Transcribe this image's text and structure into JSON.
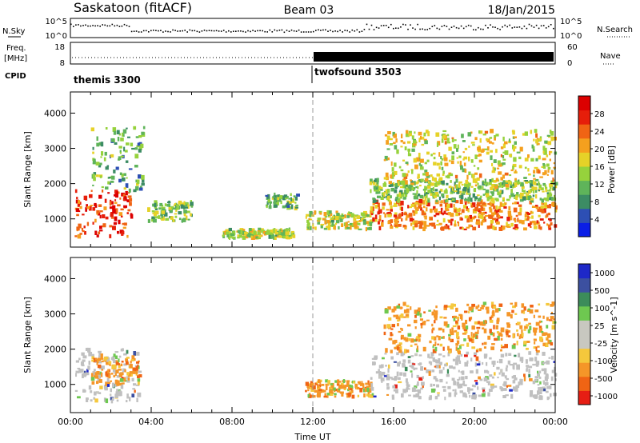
{
  "header": {
    "station": "Saskatoon (fitACF)",
    "beam": "Beam 03",
    "date": "18/Jan/2015"
  },
  "ancillary": {
    "nsky_label": "N.Sky",
    "nsky_ticks": [
      "10^5",
      "10^0"
    ],
    "nsearch_label": "N.Search",
    "nsearch_ticks": [
      "10^5",
      "10^0"
    ],
    "freq_label_line1": "Freq.",
    "freq_label_line2": "[MHz]",
    "freq_ticks": [
      "18",
      "8"
    ],
    "nave_label": "Nave",
    "nave_ticks": [
      "60",
      "0"
    ],
    "cpid_label": "CPID",
    "modes": [
      {
        "name": "themis 3300",
        "start_hour": 0
      },
      {
        "name": "twofsound 3503",
        "start_hour": 12
      }
    ]
  },
  "colors": {
    "power_scale": [
      "#0a1ee6",
      "#2d4fb4",
      "#3c8c64",
      "#5fb45a",
      "#96d23c",
      "#e6d228",
      "#f5a01e",
      "#f06414",
      "#e61e0a",
      "#dc0000"
    ],
    "velocity_scale": [
      "#1e28c8",
      "#3c50a0",
      "#3c8c5a",
      "#6ec850",
      "#c8c8c0",
      "#c8c8c0",
      "#f5c83c",
      "#f59628",
      "#f06414",
      "#e61e14"
    ],
    "ground_scatter": "#c0c0c0"
  },
  "chart_data": [
    {
      "type": "heatmap",
      "panel": "power",
      "xlabel": "Time UT",
      "ylabel": "Slant Range [km]",
      "xlim_hours": [
        0,
        24
      ],
      "ylim": [
        200,
        4600
      ],
      "yticks": [
        1000,
        2000,
        3000,
        4000
      ],
      "xticks": [
        "00:00",
        "04:00",
        "08:00",
        "12:00",
        "16:00",
        "20:00",
        "00:00"
      ],
      "colorbar_label": "Power [dB]",
      "colorbar_ticks": [
        "4",
        "8",
        "12",
        "16",
        "20",
        "24",
        "28"
      ],
      "colorbar_range": [
        0,
        30
      ],
      "features": [
        {
          "t0": 0.2,
          "t1": 3.0,
          "r0": 500,
          "r1": 1800,
          "level": 26
        },
        {
          "t0": 1.0,
          "t1": 3.6,
          "r0": 1800,
          "r1": 3600,
          "level": 10
        },
        {
          "t0": 3.8,
          "t1": 6.0,
          "r0": 900,
          "r1": 1500,
          "level": 12
        },
        {
          "t0": 7.5,
          "t1": 11.0,
          "r0": 450,
          "r1": 700,
          "level": 14
        },
        {
          "t0": 9.6,
          "t1": 11.2,
          "r0": 1300,
          "r1": 1700,
          "level": 10
        },
        {
          "t0": 11.6,
          "t1": 15.0,
          "r0": 700,
          "r1": 1200,
          "level": 14
        },
        {
          "t0": 14.8,
          "t1": 24.0,
          "r0": 700,
          "r1": 1500,
          "level": 22
        },
        {
          "t0": 14.8,
          "t1": 24.0,
          "r0": 1500,
          "r1": 2100,
          "level": 12
        },
        {
          "t0": 15.5,
          "t1": 24.0,
          "r0": 1900,
          "r1": 3500,
          "level": 16
        }
      ]
    },
    {
      "type": "heatmap",
      "panel": "velocity",
      "xlabel": "Time UT",
      "ylabel": "Slant Range [km]",
      "xlim_hours": [
        0,
        24
      ],
      "ylim": [
        200,
        4600
      ],
      "yticks": [
        1000,
        2000,
        3000,
        4000
      ],
      "xticks": [
        "00:00",
        "04:00",
        "08:00",
        "12:00",
        "16:00",
        "20:00",
        "00:00"
      ],
      "colorbar_label": "Velocity [m s^-1]",
      "colorbar_ticks": [
        "1000",
        "500",
        "100",
        "25",
        "-25",
        "-100",
        "-500",
        "-1000"
      ],
      "features": [
        {
          "t0": 0.2,
          "t1": 3.4,
          "r0": 500,
          "r1": 2000,
          "kind": "ground"
        },
        {
          "t0": 1.0,
          "t1": 3.4,
          "r0": 1000,
          "r1": 1800,
          "level": -100
        },
        {
          "t0": 11.6,
          "t1": 15.0,
          "r0": 650,
          "r1": 1100,
          "level": -100
        },
        {
          "t0": 14.8,
          "t1": 24.0,
          "r0": 600,
          "r1": 1900,
          "kind": "ground"
        },
        {
          "t0": 15.5,
          "t1": 24.0,
          "r0": 1900,
          "r1": 3300,
          "level": -300
        }
      ]
    }
  ]
}
